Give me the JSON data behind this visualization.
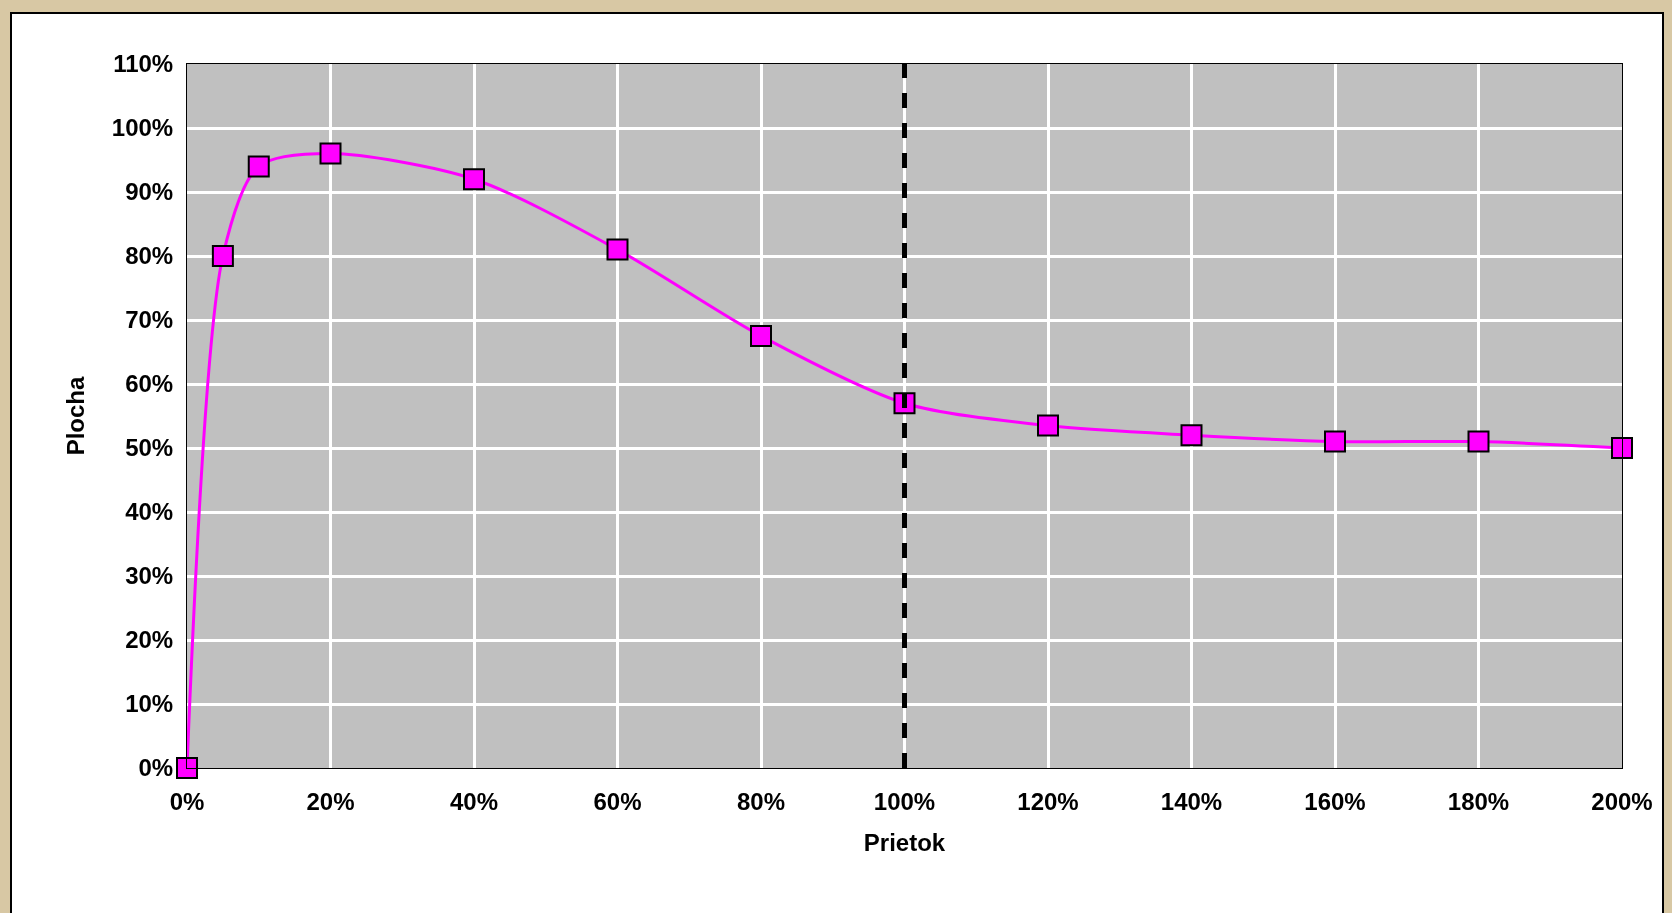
{
  "chart_data": {
    "type": "line",
    "xlabel": "Prietok",
    "ylabel": "Plocha",
    "x": [
      0,
      5,
      10,
      20,
      40,
      60,
      80,
      100,
      120,
      140,
      160,
      180,
      200
    ],
    "series": [
      {
        "color": "#ff00ff",
        "values": [
          0,
          80,
          94,
          96,
          92,
          81,
          67.5,
          57,
          53.5,
          52,
          51,
          51,
          50
        ]
      }
    ],
    "marker": "square",
    "line_style": "solid",
    "xlim": [
      0,
      200
    ],
    "xticks": [
      {
        "value": 0,
        "label": "0%"
      },
      {
        "value": 20,
        "label": "20%"
      },
      {
        "value": 40,
        "label": "40%"
      },
      {
        "value": 60,
        "label": "60%"
      },
      {
        "value": 80,
        "label": "80%"
      },
      {
        "value": 100,
        "label": "100%"
      },
      {
        "value": 120,
        "label": "120%"
      },
      {
        "value": 140,
        "label": "140%"
      },
      {
        "value": 160,
        "label": "160%"
      },
      {
        "value": 180,
        "label": "180%"
      },
      {
        "value": 200,
        "label": "200%"
      }
    ],
    "ylim": [
      0,
      110
    ],
    "yticks": [
      {
        "value": 0,
        "label": "0%"
      },
      {
        "value": 10,
        "label": "10%"
      },
      {
        "value": 20,
        "label": "20%"
      },
      {
        "value": 30,
        "label": "30%"
      },
      {
        "value": 40,
        "label": "40%"
      },
      {
        "value": 50,
        "label": "50%"
      },
      {
        "value": 60,
        "label": "60%"
      },
      {
        "value": 70,
        "label": "70%"
      },
      {
        "value": 80,
        "label": "80%"
      },
      {
        "value": 90,
        "label": "90%"
      },
      {
        "value": 100,
        "label": "100%"
      },
      {
        "value": 110,
        "label": "110%"
      }
    ],
    "grid": true,
    "ref_lines": [
      {
        "axis": "x",
        "value": 100,
        "color": "#000000",
        "line_style": "dashed"
      }
    ]
  }
}
